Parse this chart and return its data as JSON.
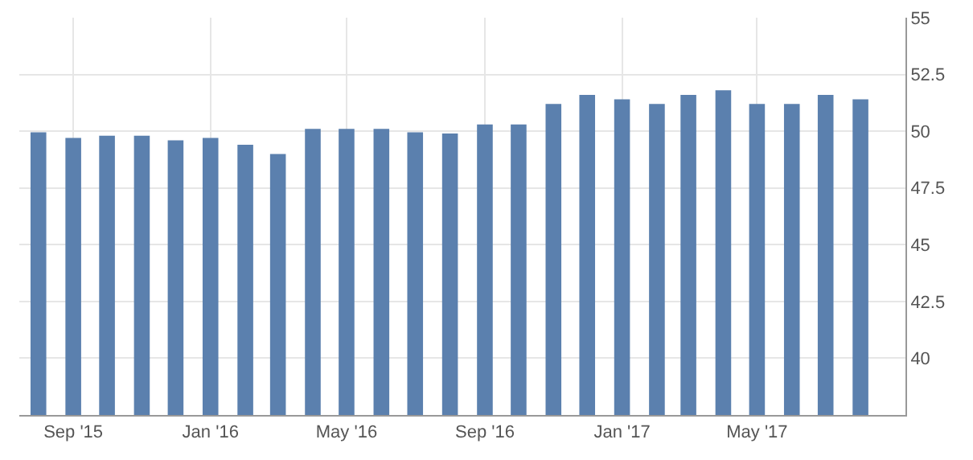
{
  "chart_data": {
    "type": "bar",
    "x": [
      "2015-08",
      "2015-09",
      "2015-10",
      "2015-11",
      "2015-12",
      "2016-01",
      "2016-02",
      "2016-03",
      "2016-04",
      "2016-05",
      "2016-06",
      "2016-07",
      "2016-08",
      "2016-09",
      "2016-10",
      "2016-11",
      "2016-12",
      "2017-01",
      "2017-02",
      "2017-03",
      "2017-04",
      "2017-05",
      "2017-06",
      "2017-07",
      "2017-08"
    ],
    "values": [
      49.95,
      49.7,
      49.8,
      49.8,
      49.6,
      49.7,
      49.4,
      49.0,
      50.1,
      50.1,
      50.1,
      49.95,
      49.9,
      50.3,
      50.3,
      51.2,
      51.6,
      51.4,
      51.2,
      51.6,
      51.8,
      51.2,
      51.2,
      51.6,
      51.4
    ],
    "color": "#5b80ae",
    "xlim": [
      "2015-07-15",
      "2017-09-10"
    ],
    "xticks": [
      {
        "value": "2015-09",
        "label": "Sep '15"
      },
      {
        "value": "2016-01",
        "label": "Jan '16"
      },
      {
        "value": "2016-05",
        "label": "May '16"
      },
      {
        "value": "2016-09",
        "label": "Sep '16"
      },
      {
        "value": "2017-01",
        "label": "Jan '17"
      },
      {
        "value": "2017-05",
        "label": "May '17"
      }
    ],
    "ylim": [
      37.5,
      55
    ],
    "yticks": [
      40,
      42.5,
      45,
      47.5,
      50,
      52.5,
      55
    ],
    "grid": true
  }
}
